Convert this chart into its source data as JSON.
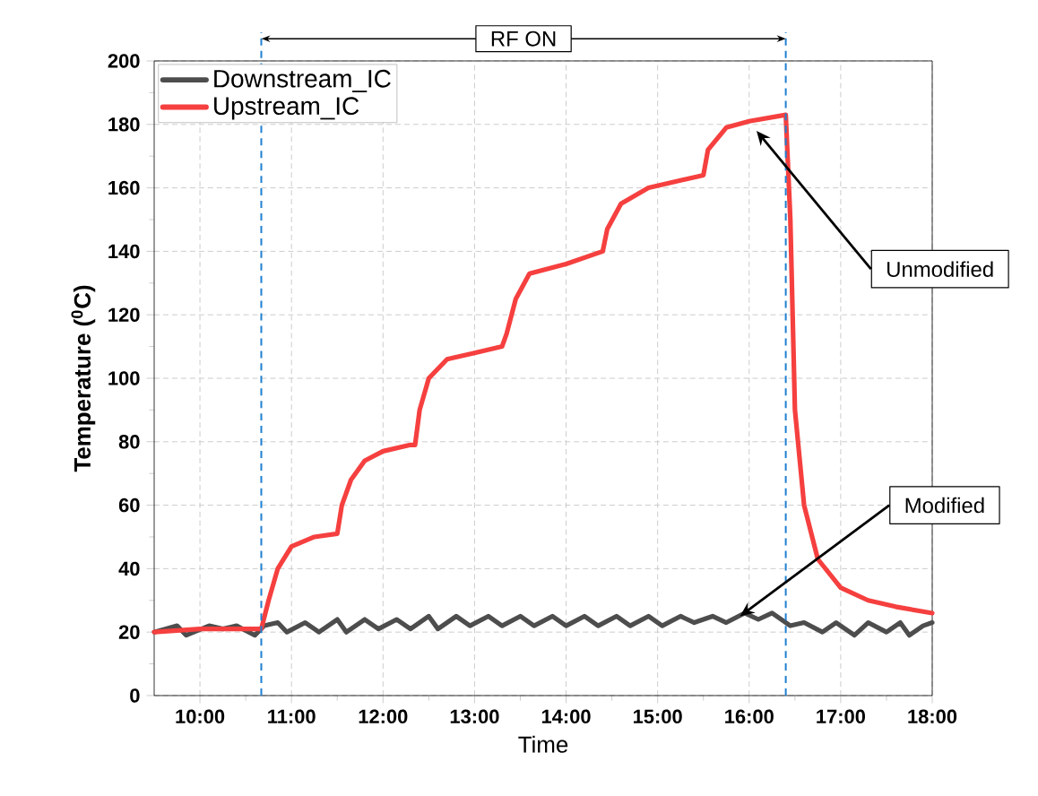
{
  "chart_data": {
    "type": "line",
    "xlabel": "Time",
    "ylabel": "Temperature ($^{0}$C)",
    "xlim": [
      9.5,
      18
    ],
    "ylim": [
      0,
      200
    ],
    "xticks": [
      {
        "value": 10,
        "label": "10:00"
      },
      {
        "value": 11,
        "label": "11:00"
      },
      {
        "value": 12,
        "label": "12:00"
      },
      {
        "value": 13,
        "label": "13:00"
      },
      {
        "value": 14,
        "label": "14:00"
      },
      {
        "value": 15,
        "label": "15:00"
      },
      {
        "value": 16,
        "label": "16:00"
      },
      {
        "value": 17,
        "label": "17:00"
      },
      {
        "value": 18,
        "label": "18:00"
      }
    ],
    "yticks": [
      0,
      20,
      40,
      60,
      80,
      100,
      120,
      140,
      160,
      180,
      200
    ],
    "grid": true,
    "legend": "top left",
    "marker": "none",
    "line_style": "solid",
    "series": [
      {
        "name": "Downstream_IC",
        "color": "#4d4d4d",
        "x": [
          9.5,
          9.75,
          9.85,
          10.1,
          10.25,
          10.4,
          10.6,
          10.7,
          10.85,
          10.95,
          11.15,
          11.3,
          11.5,
          11.6,
          11.8,
          11.95,
          12.15,
          12.3,
          12.5,
          12.6,
          12.8,
          12.95,
          13.15,
          13.3,
          13.5,
          13.65,
          13.85,
          14.0,
          14.2,
          14.35,
          14.55,
          14.7,
          14.9,
          15.05,
          15.25,
          15.4,
          15.6,
          15.75,
          15.95,
          16.1,
          16.25,
          16.45,
          16.6,
          16.8,
          16.95,
          17.15,
          17.3,
          17.5,
          17.65,
          17.75,
          17.9,
          18
        ],
        "values": [
          20,
          22,
          19,
          22,
          21,
          22,
          19,
          22,
          23,
          20,
          23,
          20,
          24,
          20,
          24,
          21,
          24,
          21,
          25,
          21,
          25,
          22,
          25,
          22,
          25,
          22,
          25,
          22,
          25,
          22,
          25,
          22,
          25,
          22,
          25,
          23,
          25,
          23,
          26,
          24,
          26,
          22,
          23,
          20,
          23,
          19,
          23,
          20,
          23,
          19,
          22,
          23
        ]
      },
      {
        "name": "Upstream_IC",
        "color": "#f5403f",
        "x": [
          9.5,
          10.0,
          10.67,
          10.75,
          10.85,
          11.0,
          11.25,
          11.5,
          11.55,
          11.65,
          11.8,
          12.0,
          12.3,
          12.35,
          12.4,
          12.5,
          12.7,
          13.0,
          13.3,
          13.35,
          13.45,
          13.6,
          14.0,
          14.4,
          14.45,
          14.6,
          14.9,
          15.5,
          15.55,
          15.75,
          16.0,
          16.4,
          16.45,
          16.5,
          16.6,
          16.75,
          17.0,
          17.3,
          17.6,
          18.0
        ],
        "values": [
          20,
          21,
          21,
          30,
          40,
          47,
          50,
          51,
          60,
          68,
          74,
          77,
          79,
          79,
          90,
          100,
          106,
          108,
          110,
          114,
          125,
          133,
          136,
          140,
          147,
          155,
          160,
          164,
          172,
          179,
          181,
          183,
          150,
          90,
          60,
          43,
          34,
          30,
          28,
          26
        ]
      }
    ],
    "ref_lines": [
      {
        "axis": "x",
        "value": 10.67,
        "color": "#1f7fd0",
        "line_style": "dashed"
      },
      {
        "axis": "x",
        "value": 16.4,
        "color": "#1f7fd0",
        "line_style": "dashed"
      }
    ],
    "annotations": [
      "RF ON",
      {
        "text": "Unmodified",
        "x": 16.08,
        "y": 178
      },
      {
        "text": "Modified",
        "x": 15.9,
        "y": 25
      }
    ]
  }
}
